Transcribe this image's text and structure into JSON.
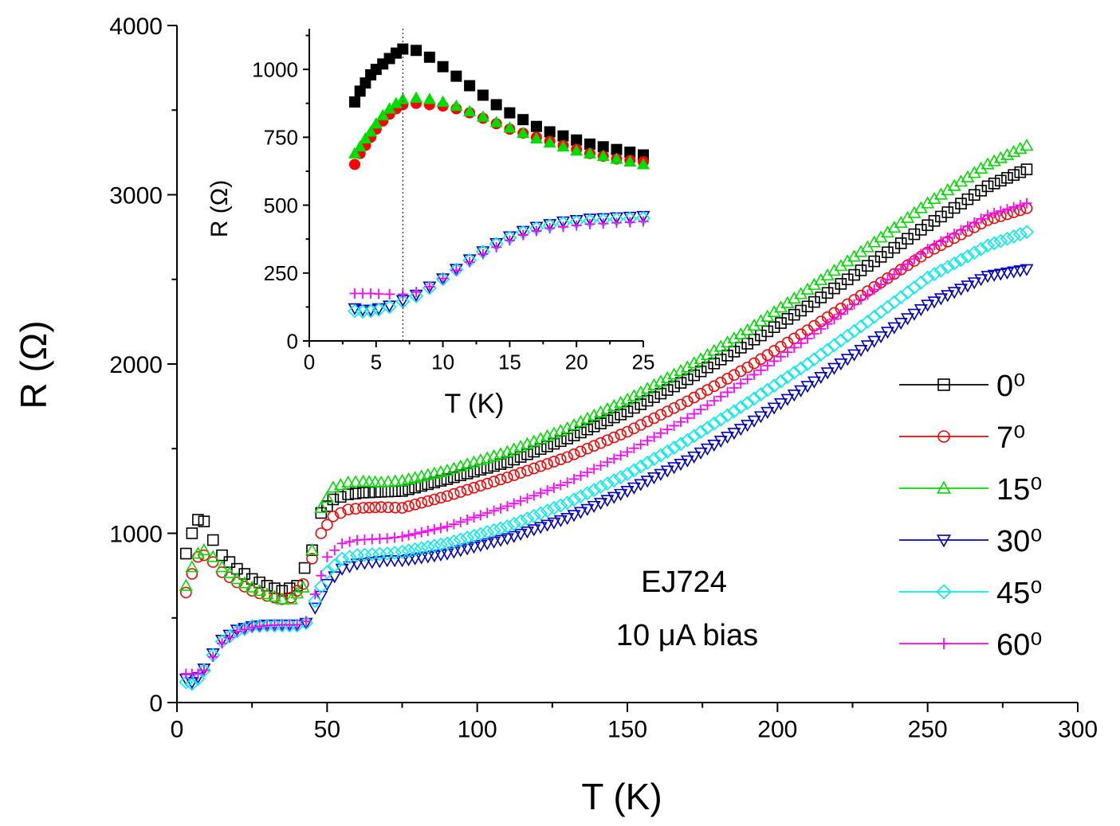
{
  "chart_data": [
    {
      "type": "scatter",
      "xlabel": "T (K)",
      "ylabel": "R (Ω)",
      "xlim": [
        0,
        300
      ],
      "ylim": [
        0,
        4000
      ],
      "xticks": [
        0,
        50,
        100,
        150,
        200,
        250,
        300
      ],
      "yticks": [
        0,
        1000,
        2000,
        3000,
        4000
      ],
      "annotations": [
        "EJ724",
        "10 μA bias"
      ],
      "legend_position": "right",
      "series": [
        {
          "name": "0⁰",
          "marker": "square-open",
          "color": "#000000",
          "x": [
            3,
            5,
            7,
            9,
            12,
            15,
            20,
            25,
            30,
            35,
            40,
            45,
            48,
            52,
            57,
            62,
            68,
            75,
            90,
            110,
            130,
            150,
            170,
            190,
            210,
            230,
            250,
            270,
            283
          ],
          "y": [
            880,
            1000,
            1080,
            1070,
            960,
            870,
            790,
            730,
            690,
            660,
            690,
            900,
            1120,
            1200,
            1230,
            1240,
            1245,
            1250,
            1320,
            1420,
            1560,
            1720,
            1910,
            2120,
            2340,
            2580,
            2820,
            3050,
            3150
          ]
        },
        {
          "name": "7⁰",
          "marker": "circle-open",
          "color": "#ff0000",
          "x": [
            3,
            5,
            7,
            9,
            12,
            15,
            20,
            25,
            30,
            35,
            38,
            42,
            45,
            48,
            52,
            57,
            62,
            68,
            75,
            90,
            110,
            130,
            150,
            170,
            190,
            210,
            230,
            250,
            270,
            283
          ],
          "y": [
            650,
            760,
            860,
            870,
            830,
            770,
            710,
            660,
            630,
            610,
            620,
            700,
            850,
            1000,
            1100,
            1140,
            1150,
            1155,
            1150,
            1220,
            1330,
            1450,
            1600,
            1780,
            1980,
            2200,
            2430,
            2660,
            2850,
            2920
          ]
        },
        {
          "name": "15⁰",
          "marker": "triangle-up-open",
          "color": "#00dd00",
          "x": [
            3,
            5,
            7,
            9,
            12,
            15,
            20,
            25,
            30,
            35,
            38,
            42,
            45,
            48,
            52,
            57,
            62,
            68,
            75,
            90,
            110,
            130,
            150,
            170,
            190,
            210,
            230,
            250,
            270,
            283
          ],
          "y": [
            690,
            800,
            880,
            900,
            860,
            800,
            730,
            680,
            640,
            610,
            610,
            680,
            900,
            1150,
            1270,
            1300,
            1305,
            1300,
            1310,
            1370,
            1480,
            1620,
            1790,
            1980,
            2200,
            2440,
            2690,
            2950,
            3180,
            3290
          ]
        },
        {
          "name": "30⁰",
          "marker": "triangle-down-open",
          "color": "#0000cc",
          "x": [
            3,
            5,
            7,
            9,
            12,
            15,
            20,
            25,
            30,
            35,
            40,
            43,
            46,
            50,
            55,
            60,
            65,
            70,
            75,
            90,
            110,
            130,
            150,
            170,
            190,
            210,
            230,
            250,
            270,
            283
          ],
          "y": [
            140,
            120,
            150,
            200,
            290,
            370,
            430,
            450,
            460,
            460,
            460,
            470,
            560,
            700,
            790,
            820,
            830,
            840,
            840,
            880,
            970,
            1090,
            1250,
            1430,
            1640,
            1870,
            2110,
            2350,
            2520,
            2560
          ]
        },
        {
          "name": "45⁰",
          "marker": "diamond-open",
          "color": "#00eeee",
          "x": [
            3,
            5,
            7,
            9,
            12,
            15,
            20,
            25,
            30,
            35,
            40,
            43,
            46,
            50,
            55,
            60,
            65,
            70,
            75,
            90,
            110,
            130,
            150,
            170,
            190,
            210,
            230,
            250,
            270,
            283
          ],
          "y": [
            120,
            110,
            140,
            190,
            280,
            360,
            420,
            450,
            455,
            455,
            455,
            470,
            600,
            770,
            850,
            870,
            875,
            880,
            890,
            940,
            1040,
            1180,
            1350,
            1550,
            1770,
            2000,
            2250,
            2510,
            2700,
            2780
          ]
        },
        {
          "name": "60⁰",
          "marker": "plus",
          "color": "#ff00ff",
          "x": [
            3,
            5,
            7,
            9,
            12,
            15,
            20,
            25,
            30,
            35,
            40,
            43,
            46,
            50,
            55,
            60,
            65,
            70,
            75,
            90,
            110,
            130,
            150,
            170,
            190,
            210,
            230,
            250,
            270,
            283
          ],
          "y": [
            170,
            170,
            170,
            190,
            270,
            350,
            420,
            445,
            455,
            460,
            460,
            480,
            640,
            860,
            940,
            960,
            965,
            970,
            980,
            1040,
            1160,
            1300,
            1480,
            1680,
            1910,
            2150,
            2410,
            2680,
            2880,
            2950
          ]
        }
      ]
    },
    {
      "type": "scatter",
      "xlabel": "T (K)",
      "ylabel": "R (Ω)",
      "xlim": [
        0,
        25
      ],
      "ylim": [
        0,
        1150
      ],
      "xticks": [
        0,
        5,
        10,
        15,
        20,
        25
      ],
      "yticks": [
        0,
        250,
        500,
        750,
        1000
      ],
      "vertical_line_x": 7,
      "series": [
        {
          "name": "0⁰",
          "marker": "square-filled",
          "color": "#000000",
          "x": [
            3.4,
            3.8,
            4.2,
            4.6,
            5.0,
            5.5,
            6.0,
            6.5,
            7.0,
            8.0,
            9.0,
            10.0,
            11.0,
            12.0,
            13.0,
            14.0,
            15.0,
            16.0,
            17.0,
            18.0,
            19.0,
            20.0,
            21.0,
            22.0,
            23.0,
            24.0,
            25.0
          ],
          "y": [
            880,
            920,
            950,
            980,
            1000,
            1020,
            1040,
            1060,
            1075,
            1070,
            1045,
            1010,
            975,
            940,
            905,
            870,
            840,
            815,
            790,
            770,
            755,
            740,
            725,
            715,
            705,
            695,
            685
          ]
        },
        {
          "name": "7⁰",
          "marker": "circle-filled",
          "color": "#ff0000",
          "x": [
            3.4,
            3.8,
            4.2,
            4.6,
            5.0,
            5.5,
            6.0,
            6.5,
            7.0,
            8.0,
            9.0,
            10.0,
            11.0,
            12.0,
            13.0,
            14.0,
            15.0,
            16.0,
            17.0,
            18.0,
            19.0,
            20.0,
            21.0,
            22.0,
            23.0,
            24.0,
            25.0
          ],
          "y": [
            650,
            690,
            720,
            750,
            780,
            810,
            835,
            855,
            870,
            875,
            870,
            865,
            855,
            840,
            820,
            800,
            780,
            765,
            750,
            735,
            720,
            705,
            690,
            680,
            670,
            665,
            660
          ]
        },
        {
          "name": "15⁰",
          "marker": "triangle-up-filled",
          "color": "#00dd00",
          "x": [
            3.4,
            3.8,
            4.2,
            4.6,
            5.0,
            5.5,
            6.0,
            6.5,
            7.0,
            8.0,
            9.0,
            10.0,
            11.0,
            12.0,
            13.0,
            14.0,
            15.0,
            16.0,
            17.0,
            18.0,
            19.0,
            20.0,
            21.0,
            22.0,
            23.0,
            24.0,
            25.0
          ],
          "y": [
            690,
            715,
            745,
            770,
            800,
            830,
            855,
            875,
            890,
            895,
            890,
            880,
            865,
            845,
            825,
            805,
            785,
            765,
            745,
            730,
            715,
            700,
            690,
            680,
            670,
            660,
            650
          ]
        },
        {
          "name": "30⁰",
          "marker": "triangle-down-open",
          "color": "#0000cc",
          "x": [
            3.4,
            4.0,
            4.6,
            5.2,
            6.0,
            7.0,
            8.0,
            9.0,
            10.0,
            11.0,
            12.0,
            13.0,
            14.0,
            15.0,
            16.0,
            17.0,
            18.0,
            19.0,
            20.0,
            21.0,
            22.0,
            23.0,
            24.0,
            25.0
          ],
          "y": [
            120,
            115,
            115,
            120,
            130,
            150,
            170,
            200,
            230,
            265,
            300,
            330,
            360,
            385,
            405,
            420,
            430,
            440,
            445,
            450,
            452,
            455,
            457,
            460
          ]
        },
        {
          "name": "45⁰",
          "marker": "diamond-open",
          "color": "#00eeee",
          "x": [
            3.4,
            4.0,
            4.6,
            5.2,
            6.0,
            7.0,
            8.0,
            9.0,
            10.0,
            11.0,
            12.0,
            13.0,
            14.0,
            15.0,
            16.0,
            17.0,
            18.0,
            19.0,
            20.0,
            21.0,
            22.0,
            23.0,
            24.0,
            25.0
          ],
          "y": [
            110,
            108,
            110,
            115,
            125,
            145,
            165,
            195,
            228,
            262,
            297,
            328,
            357,
            380,
            400,
            415,
            425,
            433,
            438,
            442,
            445,
            448,
            450,
            452
          ]
        },
        {
          "name": "60⁰",
          "marker": "plus",
          "color": "#ff00ff",
          "x": [
            3.4,
            4.0,
            4.6,
            5.2,
            6.0,
            7.0,
            8.0,
            9.0,
            10.0,
            11.0,
            12.0,
            13.0,
            14.0,
            15.0,
            16.0,
            17.0,
            18.0,
            19.0,
            20.0,
            21.0,
            22.0,
            23.0,
            24.0,
            25.0
          ],
          "y": [
            175,
            175,
            175,
            173,
            172,
            172,
            180,
            200,
            230,
            260,
            290,
            320,
            345,
            370,
            390,
            405,
            415,
            420,
            425,
            430,
            432,
            435,
            437,
            440
          ]
        }
      ]
    }
  ]
}
